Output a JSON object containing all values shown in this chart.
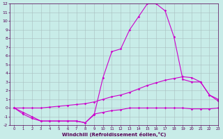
{
  "x": [
    0,
    1,
    2,
    3,
    4,
    5,
    6,
    7,
    8,
    9,
    10,
    11,
    12,
    13,
    14,
    15,
    16,
    17,
    18,
    19,
    20,
    21,
    22,
    23
  ],
  "line1": [
    0,
    -0.7,
    -1.2,
    -1.5,
    -1.5,
    -1.5,
    -1.5,
    -1.5,
    -1.7,
    -0.7,
    -0.5,
    -0.3,
    -0.2,
    0.0,
    0.0,
    0.0,
    0.0,
    0.0,
    0.0,
    0.0,
    -0.1,
    -0.1,
    -0.1,
    0.0
  ],
  "line2": [
    0,
    0.0,
    0.0,
    0.0,
    0.1,
    0.2,
    0.3,
    0.4,
    0.5,
    0.7,
    1.0,
    1.3,
    1.5,
    1.8,
    2.2,
    2.6,
    2.9,
    3.2,
    3.4,
    3.6,
    3.5,
    3.0,
    1.5,
    1.0
  ],
  "line3": [
    0,
    -0.5,
    -1.0,
    -1.5,
    -1.5,
    -1.5,
    -1.5,
    -1.5,
    -1.7,
    -0.8,
    3.5,
    6.5,
    6.8,
    9.0,
    10.5,
    12.0,
    12.0,
    11.2,
    8.2,
    3.3,
    3.0,
    3.0,
    1.5,
    0.8
  ],
  "line_color": "#cc00cc",
  "bg_color": "#c8ece8",
  "grid_color": "#a8bec0",
  "xlabel": "Windchill (Refroidissement éolien,°C)",
  "ylim": [
    -2,
    12
  ],
  "xlim": [
    -0.5,
    23
  ],
  "yticks": [
    -2,
    -1,
    0,
    1,
    2,
    3,
    4,
    5,
    6,
    7,
    8,
    9,
    10,
    11,
    12
  ],
  "xticks": [
    0,
    1,
    2,
    3,
    4,
    5,
    6,
    7,
    8,
    9,
    10,
    11,
    12,
    13,
    14,
    15,
    16,
    17,
    18,
    19,
    20,
    21,
    22,
    23
  ]
}
